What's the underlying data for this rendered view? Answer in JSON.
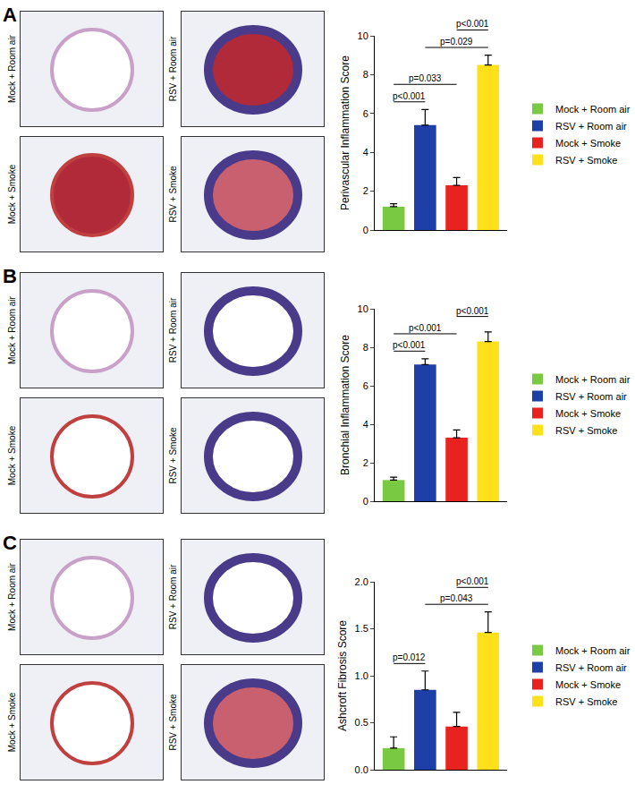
{
  "chart_data": [
    {
      "type": "bar",
      "y_label": "Perivascular Inflammation Score",
      "categories": [
        "Mock + Room air",
        "RSV + Room air",
        "Mock + Smoke",
        "RSV + Smoke"
      ],
      "colors": [
        "#7ac943",
        "#1f3fa8",
        "#e8231f",
        "#ffe01a"
      ],
      "values": [
        1.2,
        5.4,
        2.3,
        8.5
      ],
      "errors": [
        0.15,
        0.8,
        0.4,
        0.5
      ],
      "comparisons": [
        {
          "from": "Mock + Room air",
          "to": "RSV + Room air",
          "label": "p<0.001"
        },
        {
          "from": "Mock + Room air",
          "to": "Mock + Smoke",
          "label": "p=0.033"
        },
        {
          "from": "RSV + Room air",
          "to": "RSV + Smoke",
          "label": "p=0.029"
        },
        {
          "from": "Mock + Smoke",
          "to": "RSV + Smoke",
          "label": "p<0.001"
        }
      ],
      "ylim": [
        0,
        10
      ],
      "yticks": [
        0,
        2,
        4,
        6,
        8,
        10
      ],
      "grid": false,
      "tick_labels": "y",
      "legend": "right"
    },
    {
      "type": "bar",
      "y_label": "Bronchial Inflammation Score",
      "categories": [
        "Mock + Room air",
        "RSV + Room air",
        "Mock + Smoke",
        "RSV + Smoke"
      ],
      "colors": [
        "#7ac943",
        "#1f3fa8",
        "#e8231f",
        "#ffe01a"
      ],
      "values": [
        1.1,
        7.1,
        3.3,
        8.3
      ],
      "errors": [
        0.15,
        0.3,
        0.4,
        0.5
      ],
      "comparisons": [
        {
          "from": "Mock + Room air",
          "to": "RSV + Room air",
          "label": "p<0.001"
        },
        {
          "from": "Mock + Room air",
          "to": "Mock + Smoke",
          "label": "p<0.001"
        },
        {
          "from": "Mock + Smoke",
          "to": "RSV + Smoke",
          "label": "p<0.001"
        }
      ],
      "ylim": [
        0,
        10
      ],
      "yticks": [
        0,
        2,
        4,
        6,
        8,
        10
      ],
      "grid": false,
      "tick_labels": "y",
      "legend": "right"
    },
    {
      "type": "bar",
      "y_label": "Ashcroft Fibrosis Score",
      "categories": [
        "Mock + Room air",
        "RSV + Room air",
        "Mock + Smoke",
        "RSV + Smoke"
      ],
      "colors": [
        "#7ac943",
        "#1f3fa8",
        "#e8231f",
        "#ffe01a"
      ],
      "values": [
        0.23,
        0.85,
        0.46,
        1.46
      ],
      "errors": [
        0.12,
        0.2,
        0.15,
        0.22
      ],
      "comparisons": [
        {
          "from": "Mock + Room air",
          "to": "RSV + Room air",
          "label": "p=0.012"
        },
        {
          "from": "RSV + Room air",
          "to": "RSV + Smoke",
          "label": "p=0.043"
        },
        {
          "from": "Mock + Smoke",
          "to": "RSV + Smoke",
          "label": "p<0.001"
        }
      ],
      "ylim": [
        0,
        2
      ],
      "yticks": [
        {
          "value": 0,
          "label": "0.0"
        },
        0.5,
        {
          "value": 1,
          "label": "1.0"
        },
        1.5,
        {
          "value": 2,
          "label": "2.0"
        }
      ],
      "grid": false,
      "tick_labels": "y",
      "legend": "right"
    }
  ],
  "panels": [
    {
      "label": "A",
      "images": [
        "Mock + Room air",
        "RSV + Room air",
        "Mock + Smoke",
        "RSV + Smoke"
      ]
    },
    {
      "label": "B",
      "images": [
        "Mock + Room air",
        "RSV + Room air",
        "Mock + Smoke",
        "RSV + Smoke"
      ]
    },
    {
      "label": "C",
      "images": [
        "Mock + Room air",
        "RSV + Room air",
        "Mock + Smoke",
        "RSV + Smoke"
      ]
    }
  ]
}
